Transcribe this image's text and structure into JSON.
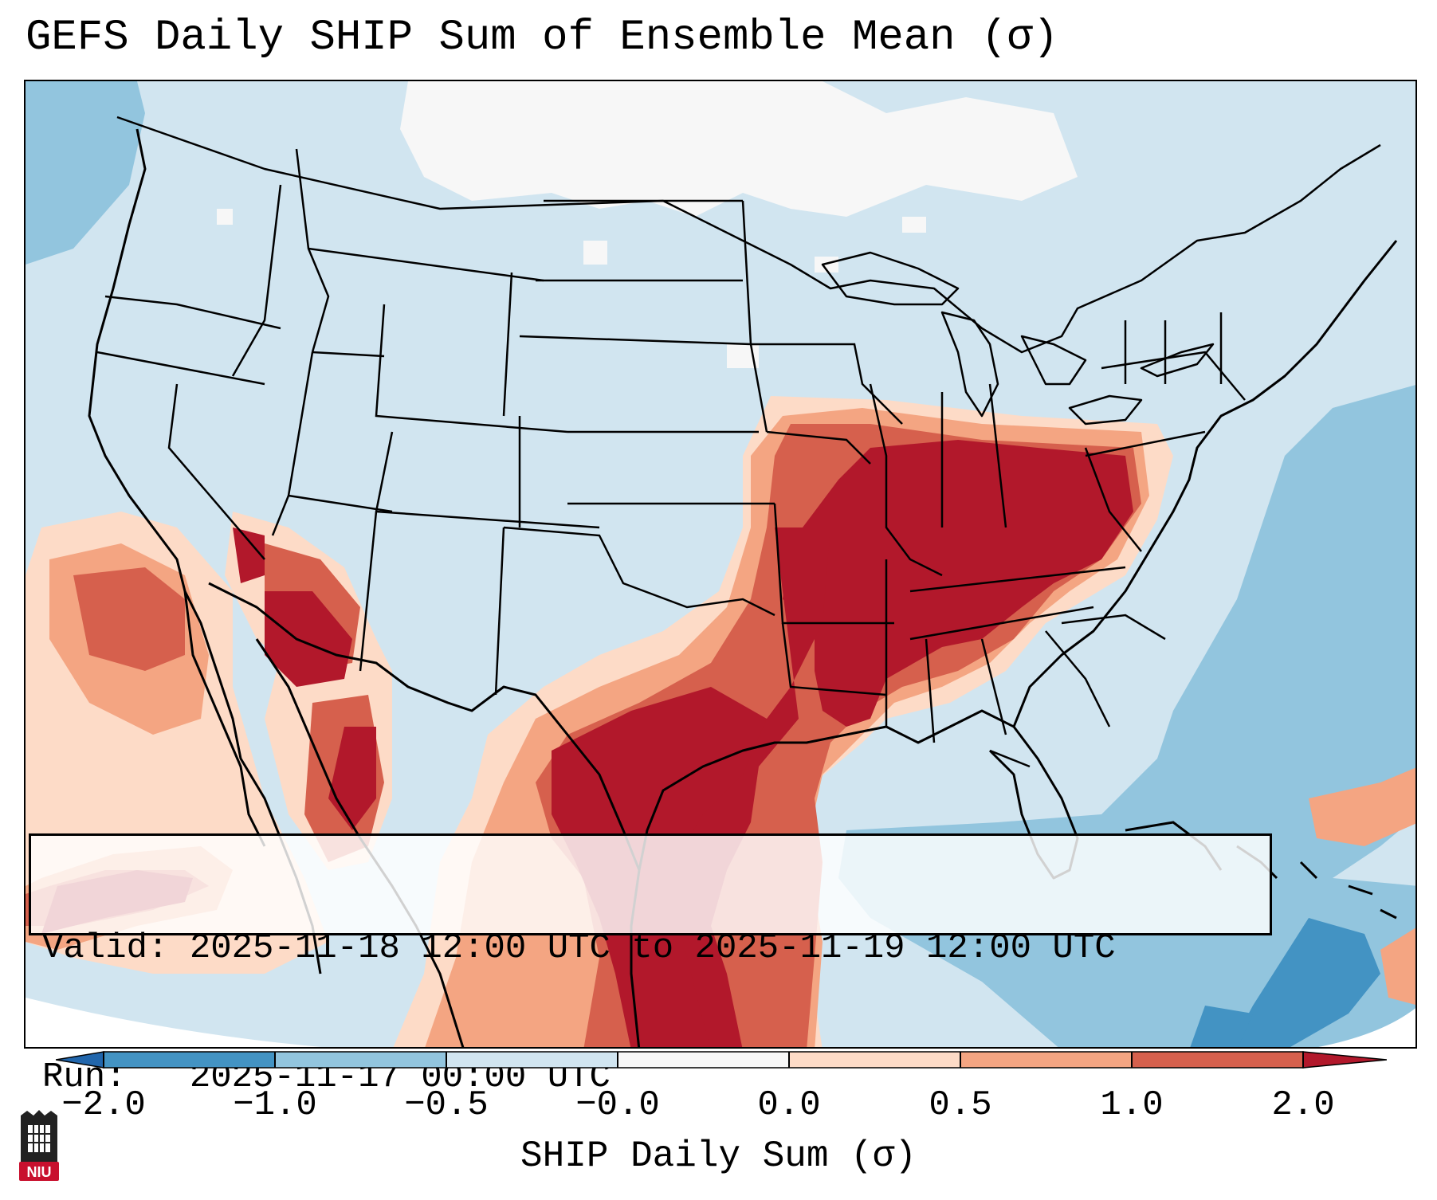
{
  "title": "GEFS Daily SHIP Sum of Ensemble Mean (σ)",
  "info": {
    "valid_label": "Valid:",
    "valid_value": "2025-11-18 12:00 UTC to 2025-11-19 12:00 UTC",
    "run_label": "Run:",
    "run_value": "2025-11-17 00:00 UTC"
  },
  "colorbar": {
    "label": "SHIP Daily Sum (σ)",
    "ticks": [
      "−2.0",
      "−1.0",
      "−0.5",
      "−0.0",
      "0.0",
      "0.5",
      "1.0",
      "2.0"
    ],
    "bins": [
      {
        "range": "< -2.0",
        "color": "#2166ac"
      },
      {
        "range": "-2.0 to -1.0",
        "color": "#4393c3"
      },
      {
        "range": "-1.0 to -0.5",
        "color": "#92c5de"
      },
      {
        "range": "-0.5 to -0.0",
        "color": "#d1e5f0"
      },
      {
        "range": "-0.0 to 0.0",
        "color": "#f7f7f7"
      },
      {
        "range": "0.0 to 0.5",
        "color": "#fddbc7"
      },
      {
        "range": "0.5 to 1.0",
        "color": "#f4a582"
      },
      {
        "range": "1.0 to 2.0",
        "color": "#d6604d"
      },
      {
        "range": "> 2.0",
        "color": "#b2182b"
      }
    ]
  },
  "map": {
    "region": "CONUS",
    "projection": "Lambert conformal",
    "highlight_regions": [
      {
        "area": "Ohio and Tennessee Valleys",
        "level": "> 2.0"
      },
      {
        "area": "Arkansas and Missouri",
        "level": "> 2.0"
      },
      {
        "area": "Texas",
        "level": "> 2.0"
      },
      {
        "area": "Southern Nevada / western Arizona",
        "level": "> 2.0"
      },
      {
        "area": "Gulf of California / Sonora",
        "level": "1.0 to 2.0"
      },
      {
        "area": "Pacific off Baja California",
        "level": "0.0 to 1.0"
      }
    ]
  },
  "logo": {
    "text": "NIU"
  }
}
